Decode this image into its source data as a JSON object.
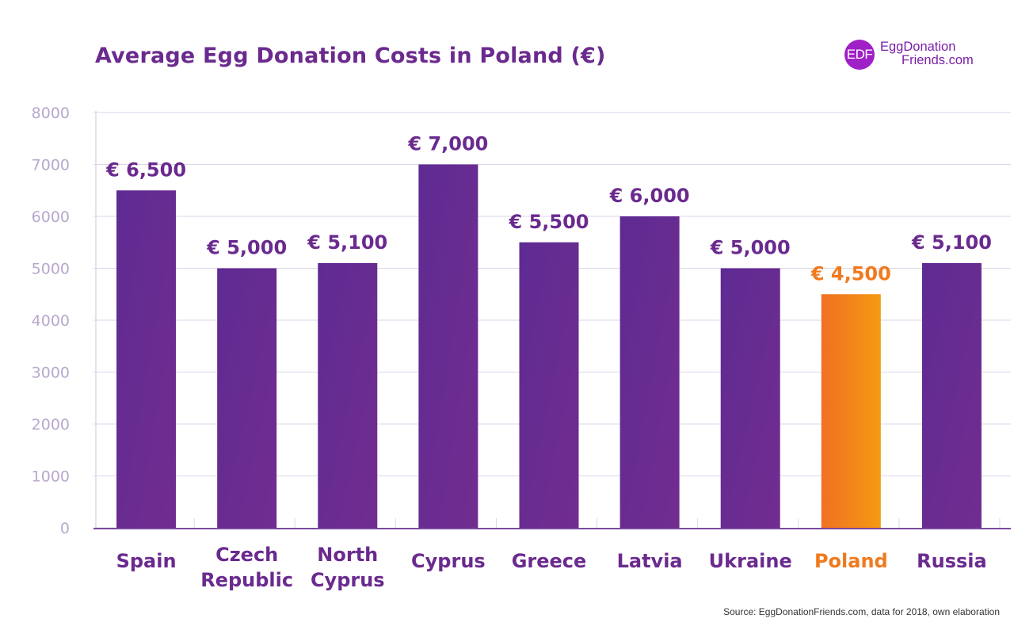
{
  "title": "Average Egg Donation Costs in Poland (€)",
  "logo": {
    "badge": "EDF",
    "line1": "EggDonation",
    "line2": "Friends.com"
  },
  "source": "Source: EggDonationFriends.com, data for 2018, own elaboration",
  "colors": {
    "title": "#6a2a8e",
    "bar": "#6a2a92",
    "bar_highlight_start": "#f07023",
    "bar_highlight_end": "#f59a12",
    "label": "#6a2a8e",
    "label_highlight": "#f07a1e",
    "axis_tick": "#b8a8cc",
    "grid": "#ddd6e8",
    "axis_line": "#7a4a9e"
  },
  "chart_data": {
    "type": "bar",
    "categories": [
      "Spain",
      "Czech Republic",
      "North Cyprus",
      "Cyprus",
      "Greece",
      "Latvia",
      "Ukraine",
      "Poland",
      "Russia"
    ],
    "category_lines": [
      [
        "Spain"
      ],
      [
        "Czech",
        "Republic"
      ],
      [
        "North",
        "Cyprus"
      ],
      [
        "Cyprus"
      ],
      [
        "Greece"
      ],
      [
        "Latvia"
      ],
      [
        "Ukraine"
      ],
      [
        "Poland"
      ],
      [
        "Russia"
      ]
    ],
    "values": [
      6500,
      5000,
      5100,
      7000,
      5500,
      6000,
      5000,
      4500,
      5100
    ],
    "data_labels": [
      "€ 6,500",
      "€ 5,000",
      "€ 5,100",
      "€ 7,000",
      "€ 5,500",
      "€ 6,000",
      "€ 5,000",
      "€ 4,500",
      "€ 5,100"
    ],
    "highlight": "Poland",
    "title": "Average Egg Donation Costs in Poland (€)",
    "xlabel": "",
    "ylabel": "",
    "ylim": [
      0,
      8000
    ],
    "yticks": [
      0,
      1000,
      2000,
      3000,
      4000,
      5000,
      6000,
      7000,
      8000
    ],
    "grid": true,
    "legend": "none"
  }
}
